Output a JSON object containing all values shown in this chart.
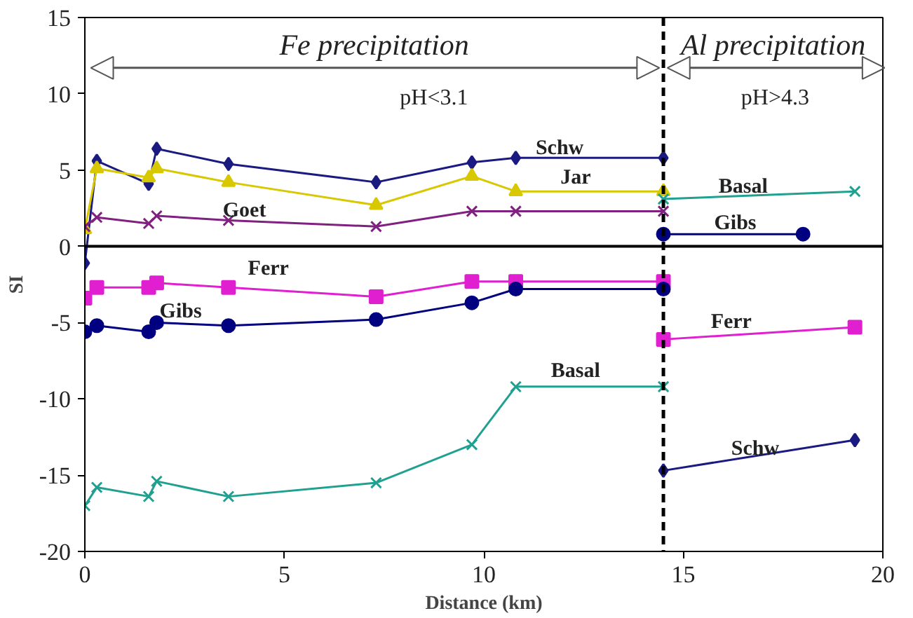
{
  "chart_data": {
    "type": "line",
    "xlabel": "Distance (km)",
    "ylabel": "SI",
    "xlim": [
      0,
      20
    ],
    "xticks": [
      0,
      5,
      10,
      15,
      20
    ],
    "ylim": [
      -20,
      15
    ],
    "yticks": [
      -20,
      -15,
      -10,
      -5,
      0,
      5,
      10,
      15
    ],
    "grid": false,
    "series": [
      {
        "name": "Schw",
        "color": "#1a1a80",
        "marker": "diamond",
        "x": [
          0,
          0.3,
          1.6,
          1.8,
          3.6,
          7.3,
          9.7,
          10.8,
          14.5
        ],
        "values": [
          -1.1,
          5.6,
          4.1,
          6.4,
          5.4,
          4.2,
          5.5,
          5.8,
          5.8
        ]
      },
      {
        "name": "Jar",
        "color": "#d8c800",
        "marker": "triangle",
        "x": [
          0,
          0.3,
          1.6,
          1.8,
          3.6,
          7.3,
          9.7,
          10.8,
          14.5
        ],
        "values": [
          1.1,
          5.1,
          4.5,
          5.1,
          4.2,
          2.7,
          4.6,
          3.6,
          3.6
        ]
      },
      {
        "name": "Goet",
        "color": "#802080",
        "marker": "cross",
        "x": [
          0,
          0.3,
          1.6,
          1.8,
          3.6,
          7.3,
          9.7,
          10.8,
          14.5
        ],
        "values": [
          1.3,
          1.9,
          1.5,
          2.0,
          1.7,
          1.3,
          2.3,
          2.3,
          2.3
        ]
      },
      {
        "name": "Ferr",
        "color": "#e020d0",
        "marker": "square",
        "x": [
          0,
          0.3,
          1.6,
          1.8,
          3.6,
          7.3,
          9.7,
          10.8,
          14.5
        ],
        "values": [
          -3.4,
          -2.7,
          -2.7,
          -2.4,
          -2.7,
          -3.3,
          -2.3,
          -2.3,
          -2.3
        ]
      },
      {
        "name": "Gibs",
        "color": "#000080",
        "marker": "circle",
        "x": [
          0,
          0.3,
          1.6,
          1.8,
          3.6,
          7.3,
          9.7,
          10.8,
          14.5
        ],
        "values": [
          -5.6,
          -5.2,
          -5.6,
          -5.0,
          -5.2,
          -4.8,
          -3.7,
          -2.8,
          -2.8
        ]
      },
      {
        "name": "Basal",
        "color": "#20a090",
        "marker": "cross",
        "x": [
          0,
          0.3,
          1.6,
          1.8,
          3.6,
          7.3,
          9.7,
          10.8,
          14.5
        ],
        "values": [
          -17.0,
          -15.8,
          -16.4,
          -15.4,
          -16.4,
          -15.5,
          -13.0,
          -9.2,
          -9.2
        ]
      },
      {
        "name": "Schw",
        "color": "#1a1a80",
        "marker": "diamond",
        "x": [
          14.5,
          19.3
        ],
        "values": [
          -14.7,
          -12.7
        ]
      },
      {
        "name": "Ferr",
        "color": "#e020d0",
        "marker": "square",
        "x": [
          14.5,
          19.3
        ],
        "values": [
          -6.1,
          -5.3
        ]
      },
      {
        "name": "Gibs",
        "color": "#000080",
        "marker": "circle",
        "x": [
          14.5,
          18.0
        ],
        "values": [
          0.8,
          0.8
        ]
      },
      {
        "name": "Basal",
        "color": "#20a090",
        "marker": "cross",
        "x": [
          14.5,
          19.3
        ],
        "values": [
          3.1,
          3.6
        ]
      }
    ],
    "ref_lines": [
      {
        "axis": "x",
        "value": 14.5,
        "color": "#000000",
        "line_style": "dashed"
      },
      {
        "axis": "y",
        "value": 0,
        "color": "#000000",
        "line_style": "solid"
      }
    ],
    "annotations": [
      "Fe precipitation",
      "Al precipitation",
      "pH<3.1",
      "pH>4.3"
    ]
  }
}
